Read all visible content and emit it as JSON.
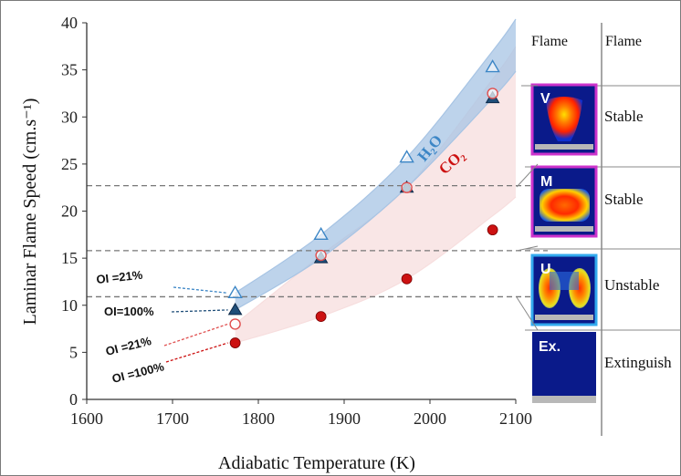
{
  "chart_data": {
    "type": "scatter",
    "xlabel": "Adiabatic Temperature (K)",
    "ylabel": "Laminar Flame Speed (cm.s⁻¹)",
    "xlim": [
      1600,
      2100
    ],
    "ylim": [
      0,
      40
    ],
    "xticks": [
      "1600",
      "1700",
      "1800",
      "1900",
      "2000",
      "2100"
    ],
    "yticks": [
      "0",
      "5",
      "10",
      "15",
      "20",
      "25",
      "30",
      "35",
      "40"
    ],
    "x": [
      1773,
      1873,
      1973,
      2073
    ],
    "series": [
      {
        "name": "H₂O",
        "oi": "OI =21%",
        "marker": "open-triangle",
        "color": "#3c86c6",
        "values": [
          11.3,
          17.5,
          25.7,
          35.3
        ]
      },
      {
        "name": "H₂O",
        "oi": "OI=100%",
        "marker": "filled-triangle",
        "color": "#1f4e79",
        "values": [
          9.5,
          15.0,
          22.5,
          32.0
        ]
      },
      {
        "name": "CO₂",
        "oi": "OI =21%",
        "marker": "open-circle",
        "color": "#e05050",
        "values": [
          8.0,
          15.3,
          22.5,
          32.5
        ]
      },
      {
        "name": "CO₂",
        "oi": "OI =100%",
        "marker": "filled-circle",
        "color": "#cc1111",
        "values": [
          6.0,
          8.8,
          12.8,
          18.0
        ]
      }
    ],
    "h2o_band": {
      "upper": [
        11.3,
        17.5,
        25.7,
        37.0
      ],
      "lower": [
        9.5,
        15.0,
        22.5,
        32.0
      ],
      "color": "#a7c4e4"
    },
    "co2_band": {
      "upper": [
        8.0,
        15.3,
        22.5,
        34.0
      ],
      "lower": [
        6.0,
        8.8,
        12.8,
        19.5
      ],
      "color": "#f7dede"
    },
    "threshold_lines": [
      22.7,
      15.8,
      10.9
    ],
    "grid": false,
    "annotations": {
      "h2o_label": "H₂O",
      "co2_label": "CO₂"
    }
  },
  "side_panel": {
    "header_left": "Flame",
    "header_right": "Flame",
    "rows": [
      {
        "letter": "V",
        "state": "Stable"
      },
      {
        "letter": "M",
        "state": "Stable"
      },
      {
        "letter": "U",
        "state": "Unstable"
      },
      {
        "letter": "Ex.",
        "state": "Extinguish"
      }
    ]
  },
  "colors": {
    "stable_border": "#cc33cc",
    "unstable_border": "#33aaee",
    "flame_bg": "#0a1a8a"
  }
}
